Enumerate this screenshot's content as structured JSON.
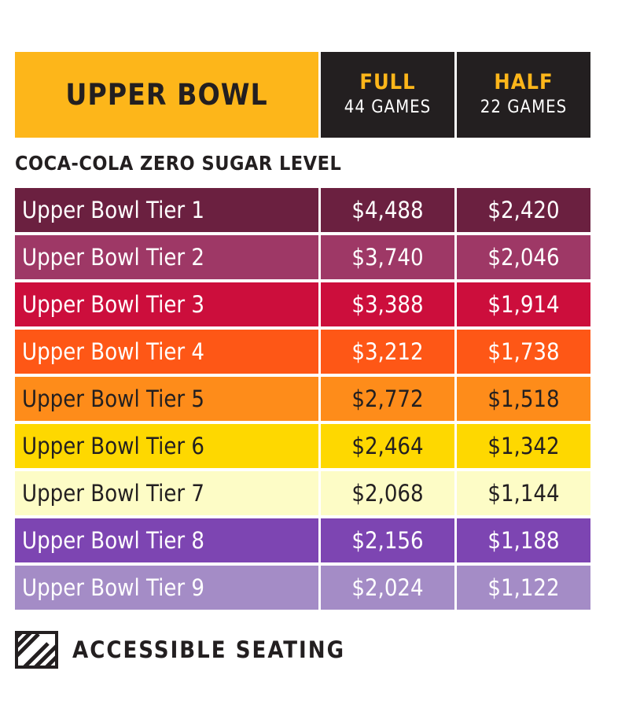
{
  "header": {
    "title": "UPPER BOWL",
    "full": {
      "label": "FULL",
      "games": "44 GAMES"
    },
    "half": {
      "label": "HALF",
      "games": "22 GAMES"
    }
  },
  "section_label": "COCA-COLA ZERO SUGAR LEVEL",
  "tiers": [
    {
      "name": "Upper Bowl Tier 1",
      "full": "$4,488",
      "half": "$2,420",
      "bg": "#6b2040",
      "fg": "#ffffff"
    },
    {
      "name": "Upper Bowl Tier 2",
      "full": "$3,740",
      "half": "$2,046",
      "bg": "#9e3866",
      "fg": "#ffffff"
    },
    {
      "name": "Upper Bowl Tier 3",
      "full": "$3,388",
      "half": "$1,914",
      "bg": "#cc0e3c",
      "fg": "#ffffff"
    },
    {
      "name": "Upper Bowl Tier 4",
      "full": "$3,212",
      "half": "$1,738",
      "bg": "#fe5716",
      "fg": "#ffffff"
    },
    {
      "name": "Upper Bowl Tier 5",
      "full": "$2,772",
      "half": "$1,518",
      "bg": "#fe8c1a",
      "fg": "#231f20"
    },
    {
      "name": "Upper Bowl Tier 6",
      "full": "$2,464",
      "half": "$1,342",
      "bg": "#fed800",
      "fg": "#231f20"
    },
    {
      "name": "Upper Bowl Tier 7",
      "full": "$2,068",
      "half": "$1,144",
      "bg": "#fdfcc6",
      "fg": "#231f20"
    },
    {
      "name": "Upper Bowl Tier 8",
      "full": "$2,156",
      "half": "$1,188",
      "bg": "#7d45b2",
      "fg": "#ffffff"
    },
    {
      "name": "Upper Bowl Tier 9",
      "full": "$2,024",
      "half": "$1,122",
      "bg": "#a48cc6",
      "fg": "#ffffff"
    }
  ],
  "legend": {
    "icon": "hatched-square-icon",
    "label": "ACCESSIBLE SEATING"
  }
}
